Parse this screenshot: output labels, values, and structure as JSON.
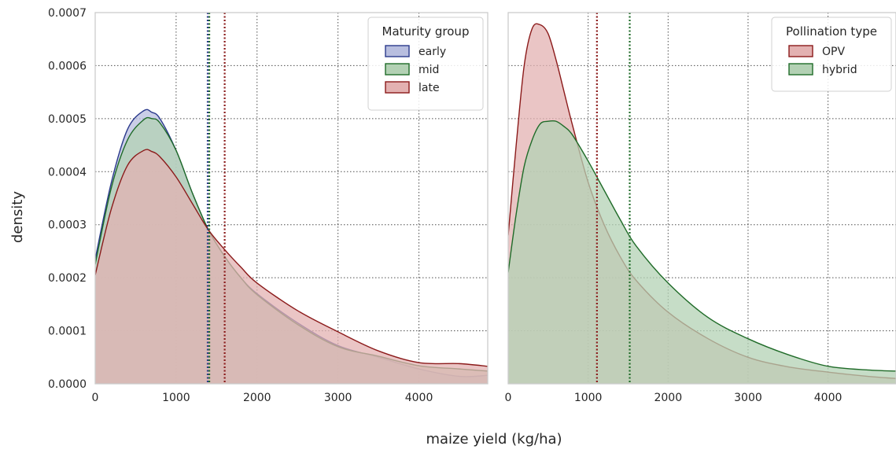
{
  "chart_data": {
    "type": "area",
    "ylabel": "density",
    "xlabel": "maize yield (kg/ha)",
    "panels": [
      {
        "xlim": [
          0,
          4850
        ],
        "ylim": [
          0,
          0.0007
        ],
        "x_ticks": [
          0,
          1000,
          2000,
          3000,
          4000
        ],
        "y_ticks": [
          "0.0000",
          "0.0001",
          "0.0002",
          "0.0003",
          "0.0004",
          "0.0005",
          "0.0006",
          "0.0007"
        ],
        "grid": true,
        "legend": {
          "title": "Maturity group",
          "placement": "top-right"
        },
        "series": [
          {
            "name": "early",
            "color": "#2b3a8c",
            "fill": "#b8bedf",
            "mean": 1390,
            "x": [
              0,
              200,
              400,
              600,
              700,
              800,
              1000,
              1200,
              1400,
              1600,
              1800,
              2000,
              2500,
              3000,
              3500,
              4000,
              4500,
              4850
            ],
            "y": [
              0.000235,
              0.00038,
              0.00048,
              0.000515,
              0.000512,
              0.0005,
              0.00044,
              0.00036,
              0.00029,
              0.00024,
              0.0002,
              0.00017,
              0.000115,
              7.2e-05,
              5e-05,
              2.8e-05,
              1.4e-05,
              1.6e-05
            ]
          },
          {
            "name": "mid",
            "color": "#1f6b28",
            "fill": "#b3d1b4",
            "mean": 1410,
            "x": [
              0,
              200,
              400,
              600,
              700,
              800,
              1000,
              1200,
              1400,
              1600,
              1800,
              2000,
              2500,
              3000,
              3500,
              4000,
              4500,
              4850
            ],
            "y": [
              0.000225,
              0.00037,
              0.00046,
              0.000498,
              0.0005,
              0.000492,
              0.00044,
              0.00036,
              0.00029,
              0.00024,
              0.0002,
              0.000168,
              0.000112,
              7e-05,
              5.2e-05,
              3.4e-05,
              2.8e-05,
              2.4e-05
            ]
          },
          {
            "name": "late",
            "color": "#8b1a1a",
            "fill": "#e3b1b1",
            "mean": 1600,
            "x": [
              0,
              200,
              400,
              600,
              700,
              800,
              1000,
              1200,
              1400,
              1600,
              1800,
              2000,
              2500,
              3000,
              3500,
              4000,
              4500,
              4850
            ],
            "y": [
              0.000205,
              0.00033,
              0.000412,
              0.00044,
              0.000438,
              0.000428,
              0.00039,
              0.00034,
              0.00029,
              0.000253,
              0.00022,
              0.00019,
              0.000138,
              9.8e-05,
              6.2e-05,
              4e-05,
              3.8e-05,
              3.3e-05
            ]
          }
        ]
      },
      {
        "xlim": [
          0,
          4850
        ],
        "ylim": [
          0,
          0.0007
        ],
        "x_ticks": [
          0,
          1000,
          2000,
          3000,
          4000
        ],
        "grid": true,
        "legend": {
          "title": "Pollination type",
          "placement": "top-right"
        },
        "series": [
          {
            "name": "OPV",
            "color": "#8b1a1a",
            "fill": "#e3b1b1",
            "mean": 1110,
            "x": [
              0,
              100,
              200,
              300,
              400,
              500,
              600,
              700,
              800,
              1000,
              1200,
              1400,
              1600,
              2000,
              2500,
              3000,
              3500,
              4000,
              4500,
              4850
            ],
            "y": [
              0.00028,
              0.00045,
              0.0006,
              0.00067,
              0.000677,
              0.00066,
              0.00061,
              0.00055,
              0.00049,
              0.00038,
              0.0003,
              0.00024,
              0.000195,
              0.000135,
              8.5e-05,
              5e-05,
              3.2e-05,
              2.2e-05,
              1.4e-05,
              1e-05
            ]
          },
          {
            "name": "hybrid",
            "color": "#1f6b28",
            "fill": "#b3d1b4",
            "mean": 1520,
            "x": [
              0,
              100,
              200,
              300,
              400,
              500,
              600,
              700,
              800,
              1000,
              1200,
              1400,
              1600,
              2000,
              2500,
              3000,
              3500,
              4000,
              4500,
              4850
            ],
            "y": [
              0.00021,
              0.00032,
              0.00041,
              0.00046,
              0.00049,
              0.000495,
              0.000495,
              0.000485,
              0.00047,
              0.00042,
              0.000365,
              0.00031,
              0.00026,
              0.00019,
              0.000125,
              8.5e-05,
              5.5e-05,
              3.3e-05,
              2.6e-05,
              2.4e-05
            ]
          }
        ]
      }
    ]
  }
}
